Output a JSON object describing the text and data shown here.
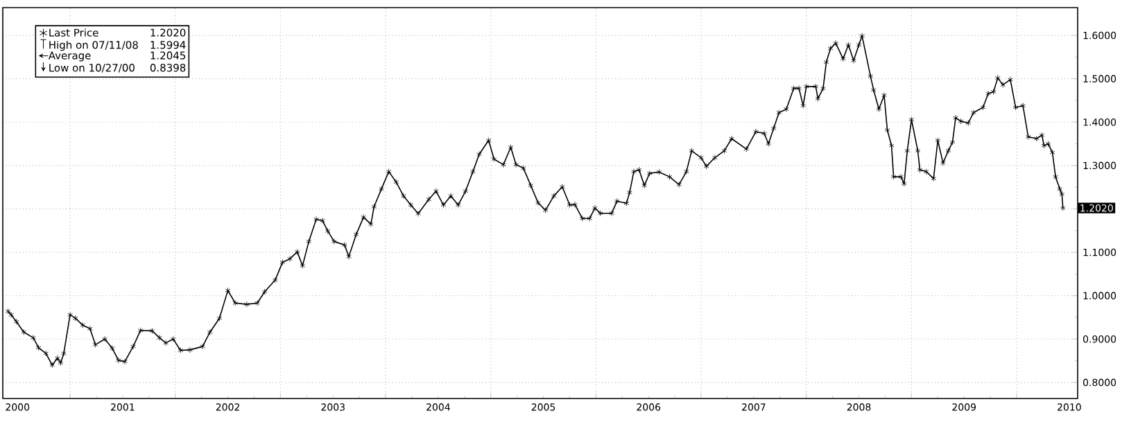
{
  "chart_data": {
    "type": "line",
    "x": [
      2000.41,
      2000.44,
      2000.49,
      2000.56,
      2000.65,
      2000.7,
      2000.77,
      2000.83,
      2000.88,
      2000.91,
      2000.94,
      2001.0,
      2001.05,
      2001.12,
      2001.19,
      2001.24,
      2001.33,
      2001.4,
      2001.46,
      2001.52,
      2001.6,
      2001.67,
      2001.78,
      2001.85,
      2001.91,
      2001.98,
      2002.05,
      2002.14,
      2002.26,
      2002.33,
      2002.42,
      2002.5,
      2002.57,
      2002.68,
      2002.78,
      2002.85,
      2002.95,
      2003.02,
      2003.09,
      2003.16,
      2003.21,
      2003.27,
      2003.34,
      2003.4,
      2003.45,
      2003.51,
      2003.61,
      2003.65,
      2003.72,
      2003.79,
      2003.86,
      2003.89,
      2003.96,
      2004.03,
      2004.1,
      2004.17,
      2004.24,
      2004.31,
      2004.41,
      2004.48,
      2004.55,
      2004.62,
      2004.69,
      2004.76,
      2004.83,
      2004.89,
      2004.98,
      2005.03,
      2005.12,
      2005.19,
      2005.24,
      2005.31,
      2005.38,
      2005.45,
      2005.52,
      2005.6,
      2005.68,
      2005.75,
      2005.8,
      2005.87,
      2005.94,
      2005.99,
      2006.04,
      2006.15,
      2006.2,
      2006.29,
      2006.32,
      2006.36,
      2006.41,
      2006.46,
      2006.51,
      2006.6,
      2006.7,
      2006.79,
      2006.86,
      2006.91,
      2007.0,
      2007.05,
      2007.13,
      2007.22,
      2007.29,
      2007.43,
      2007.52,
      2007.6,
      2007.64,
      2007.69,
      2007.74,
      2007.81,
      2007.88,
      2007.93,
      2007.97,
      2008.0,
      2008.09,
      2008.11,
      2008.16,
      2008.19,
      2008.23,
      2008.28,
      2008.35,
      2008.4,
      2008.45,
      2008.5,
      2008.53,
      2008.61,
      2008.64,
      2008.69,
      2008.74,
      2008.77,
      2008.81,
      2008.83,
      2008.9,
      2008.93,
      2008.96,
      2009.0,
      2009.06,
      2009.08,
      2009.14,
      2009.21,
      2009.25,
      2009.3,
      2009.35,
      2009.39,
      2009.42,
      2009.47,
      2009.54,
      2009.59,
      2009.68,
      2009.73,
      2009.78,
      2009.82,
      2009.87,
      2009.94,
      2009.99,
      2010.06,
      2010.11,
      2010.19,
      2010.24,
      2010.26,
      2010.3,
      2010.34,
      2010.37,
      2010.41,
      2010.43,
      2010.44
    ],
    "series": [
      {
        "name": "Last Price",
        "color": "#000000",
        "values": [
          0.964,
          0.956,
          0.94,
          0.916,
          0.903,
          0.88,
          0.867,
          0.84,
          0.856,
          0.845,
          0.867,
          0.956,
          0.948,
          0.932,
          0.924,
          0.887,
          0.9,
          0.879,
          0.851,
          0.848,
          0.883,
          0.92,
          0.919,
          0.903,
          0.891,
          0.9,
          0.874,
          0.875,
          0.883,
          0.916,
          0.948,
          1.012,
          0.983,
          0.98,
          0.983,
          1.009,
          1.036,
          1.077,
          1.085,
          1.101,
          1.069,
          1.125,
          1.176,
          1.173,
          1.149,
          1.125,
          1.117,
          1.09,
          1.141,
          1.181,
          1.165,
          1.205,
          1.246,
          1.286,
          1.262,
          1.23,
          1.209,
          1.189,
          1.222,
          1.241,
          1.209,
          1.23,
          1.209,
          1.241,
          1.286,
          1.326,
          1.358,
          1.315,
          1.302,
          1.342,
          1.302,
          1.294,
          1.254,
          1.214,
          1.197,
          1.23,
          1.251,
          1.209,
          1.21,
          1.178,
          1.178,
          1.202,
          1.19,
          1.19,
          1.218,
          1.213,
          1.238,
          1.286,
          1.29,
          1.254,
          1.282,
          1.285,
          1.274,
          1.256,
          1.286,
          1.334,
          1.318,
          1.298,
          1.318,
          1.334,
          1.362,
          1.338,
          1.378,
          1.374,
          1.35,
          1.386,
          1.422,
          1.43,
          1.478,
          1.478,
          1.438,
          1.482,
          1.482,
          1.454,
          1.478,
          1.538,
          1.57,
          1.582,
          1.546,
          1.578,
          1.542,
          1.578,
          1.599,
          1.506,
          1.474,
          1.43,
          1.462,
          1.382,
          1.346,
          1.274,
          1.274,
          1.258,
          1.334,
          1.406,
          1.334,
          1.29,
          1.286,
          1.27,
          1.358,
          1.306,
          1.334,
          1.354,
          1.41,
          1.402,
          1.398,
          1.422,
          1.434,
          1.466,
          1.47,
          1.502,
          1.486,
          1.498,
          1.434,
          1.438,
          1.366,
          1.362,
          1.37,
          1.346,
          1.35,
          1.33,
          1.274,
          1.246,
          1.234,
          1.202
        ]
      }
    ],
    "xlim": [
      2000.36,
      2010.58
    ],
    "xticks": [
      {
        "value": 2000.5,
        "label": "2000"
      },
      {
        "value": 2001,
        "label": null
      },
      {
        "value": 2001.5,
        "label": "2001"
      },
      {
        "value": 2002,
        "label": null
      },
      {
        "value": 2002.5,
        "label": "2002"
      },
      {
        "value": 2003,
        "label": null
      },
      {
        "value": 2003.5,
        "label": "2003"
      },
      {
        "value": 2004,
        "label": null
      },
      {
        "value": 2004.5,
        "label": "2004"
      },
      {
        "value": 2005,
        "label": null
      },
      {
        "value": 2005.5,
        "label": "2005"
      },
      {
        "value": 2006,
        "label": null
      },
      {
        "value": 2006.5,
        "label": "2006"
      },
      {
        "value": 2007,
        "label": null
      },
      {
        "value": 2007.5,
        "label": "2007"
      },
      {
        "value": 2008,
        "label": null
      },
      {
        "value": 2008.5,
        "label": "2008"
      },
      {
        "value": 2009,
        "label": null
      },
      {
        "value": 2009.5,
        "label": "2009"
      },
      {
        "value": 2010,
        "label": null
      },
      {
        "value": 2010.5,
        "label": "2010"
      }
    ],
    "ylim": [
      0.763,
      1.664
    ],
    "yticks": [
      {
        "value": 0.8,
        "label": "0.8000"
      },
      {
        "value": 0.9,
        "label": "0.9000"
      },
      {
        "value": 1.0,
        "label": "1.0000"
      },
      {
        "value": 1.1,
        "label": "1.1000"
      },
      {
        "value": 1.2,
        "label": null
      },
      {
        "value": 1.3,
        "label": "1.3000"
      },
      {
        "value": 1.4,
        "label": "1.4000"
      },
      {
        "value": 1.5,
        "label": "1.5000"
      },
      {
        "value": 1.6,
        "label": "1.6000"
      }
    ],
    "grid": true,
    "marker": "cross",
    "line_style": "solid",
    "legend": "top left",
    "annotations": [
      "1.2020",
      "High on 07/11/08",
      "1.5994",
      "Average",
      "1.2045",
      "Low on 10/27/00",
      "0.8398",
      "1.2020"
    ]
  }
}
